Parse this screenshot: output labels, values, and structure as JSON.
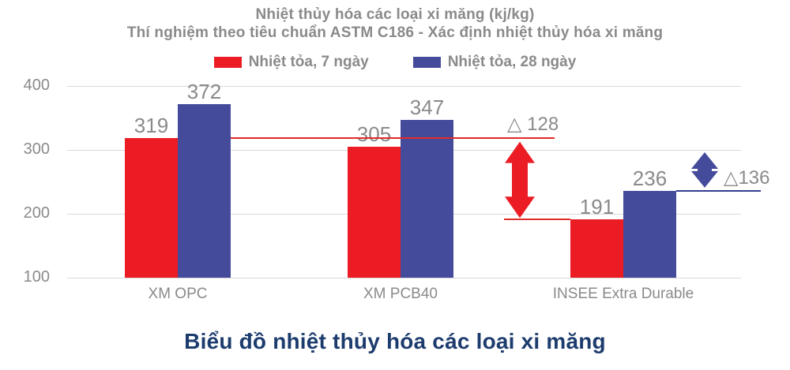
{
  "colors": {
    "red": "#EC1C24",
    "blue": "#454B9B",
    "text_gray": "#8A8A8A",
    "gridline": "#D8D8D8",
    "red_line": "#E02B2B",
    "blue_line": "#333D8F",
    "caption_navy": "#1D3C6E"
  },
  "header": {
    "title": "Nhiệt thủy hóa các loại xi măng (kj/kg)",
    "subtitle": "Thí nghiệm theo tiêu chuẩn ASTM C186 - Xác định nhiệt thủy hóa xi măng"
  },
  "legend": [
    {
      "label": "Nhiệt tỏa, 7 ngày",
      "color": "#EC1C24"
    },
    {
      "label": "Nhiệt tỏa, 28 ngày",
      "color": "#454B9B"
    }
  ],
  "caption": "Biểu đồ nhiệt thủy hóa các loại xi măng",
  "chart_data": {
    "type": "bar",
    "categories": [
      "XM OPC",
      "XM PCB40",
      "INSEE Extra Durable"
    ],
    "series": [
      {
        "name": "Nhiệt tỏa, 7 ngày",
        "color": "#EC1C24",
        "values": [
          319,
          305,
          191
        ]
      },
      {
        "name": "Nhiệt tỏa, 28 ngày",
        "color": "#454B9B",
        "values": [
          372,
          347,
          236
        ]
      }
    ],
    "ylim": [
      100,
      400
    ],
    "yticks": [
      100,
      200,
      300,
      400
    ],
    "grid": true,
    "legend_position": "top",
    "annotations": [
      {
        "id": "delta-7-ngay",
        "label": "△ 128",
        "delta": 128,
        "from_value": 319,
        "to_value": 191,
        "color": "#EC1C24"
      },
      {
        "id": "delta-28-ngay",
        "label": "△136",
        "delta": 136,
        "from_value": 372,
        "to_value": 236,
        "color": "#454B9B"
      }
    ]
  }
}
